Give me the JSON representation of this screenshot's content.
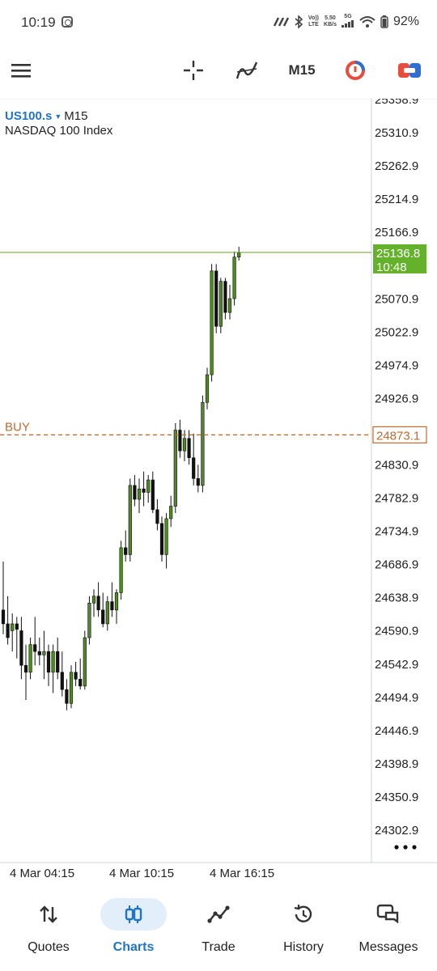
{
  "status_bar": {
    "time": "10:19",
    "net_top": "Vo))",
    "net_bottom": "LTE",
    "speed_top": "5.50",
    "speed_bottom": "KB/s",
    "gen": "5G",
    "battery": "92%"
  },
  "toolbar": {
    "menu_icon": "hamburger-icon",
    "crosshair_icon": "crosshair-icon",
    "indicators_icon": "indicator-curve-icon",
    "timeframe": "M15",
    "one_click_icon": "one-click-trading-icon",
    "trade_icon": "trade-panel-icon"
  },
  "symbol": {
    "name": "US100.s",
    "caret": "▼",
    "timeframe": "M15",
    "description": "NASDAQ 100 Index"
  },
  "chart_data": {
    "type": "candlestick",
    "title": "",
    "price_axis_ticks": [
      "25358.9",
      "25310.9",
      "25262.9",
      "25214.9",
      "25166.9",
      "25070.9",
      "25022.9",
      "24974.9",
      "24926.9",
      "24830.9",
      "24782.9",
      "24734.9",
      "24686.9",
      "24638.9",
      "24590.9",
      "24542.9",
      "24494.9",
      "24446.9",
      "24398.9",
      "24350.9",
      "24302.9"
    ],
    "time_axis_labels": [
      "4 Mar 04:15",
      "4 Mar 10:15",
      "4 Mar 16:15"
    ],
    "ylim": [
      24270,
      25378
    ],
    "current_price": "25136.8",
    "current_time_left": "10:48",
    "buy_label": "BUY",
    "buy_price": "24873.1",
    "colors": {
      "bull": "#4f8a22",
      "bear": "#111111",
      "price_line": "#7cab3f",
      "buy_line": "#c06a2c",
      "price_tag_bg": "#64b22b"
    },
    "candles": [
      {
        "o": 24620,
        "h": 24690,
        "l": 24585,
        "c": 24600
      },
      {
        "o": 24600,
        "h": 24640,
        "l": 24570,
        "c": 24580
      },
      {
        "o": 24590,
        "h": 24615,
        "l": 24560,
        "c": 24600
      },
      {
        "o": 24600,
        "h": 24610,
        "l": 24550,
        "c": 24592
      },
      {
        "o": 24590,
        "h": 24610,
        "l": 24520,
        "c": 24540
      },
      {
        "o": 24540,
        "h": 24570,
        "l": 24490,
        "c": 24530
      },
      {
        "o": 24530,
        "h": 24580,
        "l": 24520,
        "c": 24570
      },
      {
        "o": 24570,
        "h": 24610,
        "l": 24540,
        "c": 24560
      },
      {
        "o": 24560,
        "h": 24580,
        "l": 24540,
        "c": 24555
      },
      {
        "o": 24555,
        "h": 24590,
        "l": 24520,
        "c": 24560
      },
      {
        "o": 24560,
        "h": 24570,
        "l": 24510,
        "c": 24530
      },
      {
        "o": 24530,
        "h": 24570,
        "l": 24500,
        "c": 24560
      },
      {
        "o": 24560,
        "h": 24580,
        "l": 24520,
        "c": 24530
      },
      {
        "o": 24530,
        "h": 24560,
        "l": 24495,
        "c": 24505
      },
      {
        "o": 24505,
        "h": 24520,
        "l": 24475,
        "c": 24485
      },
      {
        "o": 24485,
        "h": 24540,
        "l": 24478,
        "c": 24530
      },
      {
        "o": 24530,
        "h": 24545,
        "l": 24510,
        "c": 24520
      },
      {
        "o": 24520,
        "h": 24550,
        "l": 24505,
        "c": 24510
      },
      {
        "o": 24510,
        "h": 24590,
        "l": 24505,
        "c": 24580
      },
      {
        "o": 24580,
        "h": 24640,
        "l": 24570,
        "c": 24630
      },
      {
        "o": 24630,
        "h": 24650,
        "l": 24610,
        "c": 24640
      },
      {
        "o": 24640,
        "h": 24660,
        "l": 24610,
        "c": 24620
      },
      {
        "o": 24620,
        "h": 24645,
        "l": 24595,
        "c": 24600
      },
      {
        "o": 24600,
        "h": 24640,
        "l": 24590,
        "c": 24632
      },
      {
        "o": 24632,
        "h": 24660,
        "l": 24610,
        "c": 24620
      },
      {
        "o": 24620,
        "h": 24650,
        "l": 24600,
        "c": 24645
      },
      {
        "o": 24645,
        "h": 24720,
        "l": 24635,
        "c": 24710
      },
      {
        "o": 24710,
        "h": 24735,
        "l": 24690,
        "c": 24700
      },
      {
        "o": 24700,
        "h": 24810,
        "l": 24690,
        "c": 24800
      },
      {
        "o": 24800,
        "h": 24815,
        "l": 24770,
        "c": 24780
      },
      {
        "o": 24780,
        "h": 24810,
        "l": 24760,
        "c": 24795
      },
      {
        "o": 24795,
        "h": 24820,
        "l": 24770,
        "c": 24790
      },
      {
        "o": 24790,
        "h": 24815,
        "l": 24775,
        "c": 24808
      },
      {
        "o": 24808,
        "h": 24820,
        "l": 24760,
        "c": 24765
      },
      {
        "o": 24765,
        "h": 24780,
        "l": 24735,
        "c": 24745
      },
      {
        "o": 24745,
        "h": 24755,
        "l": 24690,
        "c": 24700
      },
      {
        "o": 24700,
        "h": 24760,
        "l": 24680,
        "c": 24752
      },
      {
        "o": 24752,
        "h": 24785,
        "l": 24740,
        "c": 24770
      },
      {
        "o": 24770,
        "h": 24890,
        "l": 24760,
        "c": 24880
      },
      {
        "o": 24880,
        "h": 24895,
        "l": 24840,
        "c": 24850
      },
      {
        "o": 24850,
        "h": 24880,
        "l": 24835,
        "c": 24868
      },
      {
        "o": 24868,
        "h": 24880,
        "l": 24830,
        "c": 24840
      },
      {
        "o": 24840,
        "h": 24875,
        "l": 24800,
        "c": 24810
      },
      {
        "o": 24810,
        "h": 24830,
        "l": 24790,
        "c": 24800
      },
      {
        "o": 24800,
        "h": 24930,
        "l": 24790,
        "c": 24920
      },
      {
        "o": 24920,
        "h": 24970,
        "l": 24910,
        "c": 24960
      },
      {
        "o": 24960,
        "h": 25120,
        "l": 24950,
        "c": 25110
      },
      {
        "o": 25110,
        "h": 25120,
        "l": 25020,
        "c": 25030
      },
      {
        "o": 25030,
        "h": 25100,
        "l": 25020,
        "c": 25095
      },
      {
        "o": 25095,
        "h": 25100,
        "l": 25040,
        "c": 25050
      },
      {
        "o": 25050,
        "h": 25090,
        "l": 25040,
        "c": 25070
      },
      {
        "o": 25070,
        "h": 25138,
        "l": 25060,
        "c": 25130
      },
      {
        "o": 25130,
        "h": 25145,
        "l": 25125,
        "c": 25136
      }
    ]
  },
  "more_icon": "more-dots-icon",
  "nav": [
    {
      "label": "Quotes",
      "icon": "quotes-arrows-icon",
      "active": false
    },
    {
      "label": "Charts",
      "icon": "charts-candles-icon",
      "active": true
    },
    {
      "label": "Trade",
      "icon": "trade-line-icon",
      "active": false
    },
    {
      "label": "History",
      "icon": "history-clock-icon",
      "active": false
    },
    {
      "label": "Messages",
      "icon": "messages-bubbles-icon",
      "active": false
    }
  ]
}
